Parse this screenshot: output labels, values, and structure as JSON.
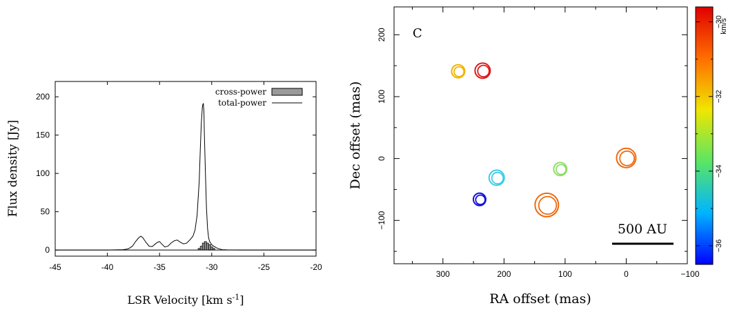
{
  "chart_data": [
    {
      "type": "line",
      "xlabel": "LSR Velocity [km s",
      "xlabel_sup": "-1",
      "xlabel_end": "]",
      "ylabel": "Flux density [Jy]",
      "xlim": [
        -45,
        -20
      ],
      "ylim": [
        -8,
        220
      ],
      "xticks": [
        -45,
        -40,
        -35,
        -30,
        -25,
        -20
      ],
      "yticks": [
        0,
        50,
        100,
        150,
        200
      ],
      "legend_position": "top-right",
      "series": [
        {
          "name": "total-power",
          "style": "line",
          "x": [
            -45,
            -40,
            -38.5,
            -38,
            -37.6,
            -37.3,
            -37.0,
            -36.8,
            -36.6,
            -36.3,
            -36.0,
            -35.7,
            -35.4,
            -35.2,
            -35.0,
            -34.8,
            -34.5,
            -34.2,
            -33.9,
            -33.6,
            -33.3,
            -33.0,
            -32.7,
            -32.4,
            -32.1,
            -31.8,
            -31.6,
            -31.4,
            -31.2,
            -31.1,
            -31.0,
            -30.9,
            -30.85,
            -30.8,
            -30.75,
            -30.7,
            -30.6,
            -30.5,
            -30.4,
            -30.3,
            -30.2,
            -30.0,
            -29.8,
            -29.5,
            -29.2,
            -29.0,
            -28.5,
            -28.0,
            -27.0,
            -25,
            -20
          ],
          "values": [
            0,
            0,
            0.5,
            1.5,
            5,
            11,
            16,
            18,
            16,
            10,
            5,
            4.5,
            8,
            10,
            11,
            8,
            4,
            5,
            9,
            12,
            13,
            10,
            8,
            9,
            13,
            18,
            26,
            45,
            90,
            130,
            165,
            186,
            190,
            191,
            180,
            150,
            100,
            55,
            28,
            16,
            11,
            7,
            5,
            2.5,
            1.2,
            0.5,
            0.2,
            0.1,
            0,
            0,
            0
          ]
        },
        {
          "name": "cross-power",
          "style": "histogram",
          "x": [
            -31.2,
            -31.0,
            -30.8,
            -30.6,
            -30.4,
            -30.2,
            -30.0,
            -29.8
          ],
          "values": [
            2,
            5,
            9,
            11,
            9,
            7,
            4,
            2
          ]
        }
      ]
    },
    {
      "type": "scatter",
      "panel_label": "C",
      "xlabel": "RA offset (mas)",
      "ylabel": "Dec offset (mas)",
      "xlim": [
        380,
        -100
      ],
      "ylim": [
        -170,
        245
      ],
      "xticks": [
        300,
        200,
        100,
        0,
        -100
      ],
      "yticks": [
        -100,
        0,
        100,
        200
      ],
      "scale_bar_label": "500 AU",
      "colorbar": {
        "unit": "km/s",
        "range": [
          -36.5,
          -29.6
        ],
        "ticks": [
          -30,
          -32,
          -34,
          -36
        ],
        "tick_labels": [
          "−30",
          "−32",
          "−34",
          "−36"
        ],
        "colors": [
          "#0000ff",
          "#00b4ff",
          "#5ae664",
          "#f0e600",
          "#ff6e00",
          "#e00000"
        ]
      },
      "spots": [
        {
          "ra": 275,
          "dec": 141,
          "velocity": -31.5,
          "color": "#f2b300",
          "size": 9.5
        },
        {
          "ra": 235,
          "dec": 142,
          "velocity": -29.9,
          "color": "#dd1a1a",
          "size": 11
        },
        {
          "ra": 0,
          "dec": 1,
          "velocity": -30.6,
          "color": "#ee6a10",
          "size": 14
        },
        {
          "ra": 108,
          "dec": -17,
          "velocity": -32.9,
          "color": "#8ede6a",
          "size": 9.5
        },
        {
          "ra": 212,
          "dec": -31,
          "velocity": -34.4,
          "color": "#3ccde6",
          "size": 11
        },
        {
          "ra": 130,
          "dec": -75,
          "velocity": -30.8,
          "color": "#ee6a10",
          "size": 17
        },
        {
          "ra": 240,
          "dec": -66,
          "velocity": -36.2,
          "color": "#1212dd",
          "size": 9
        }
      ]
    }
  ]
}
